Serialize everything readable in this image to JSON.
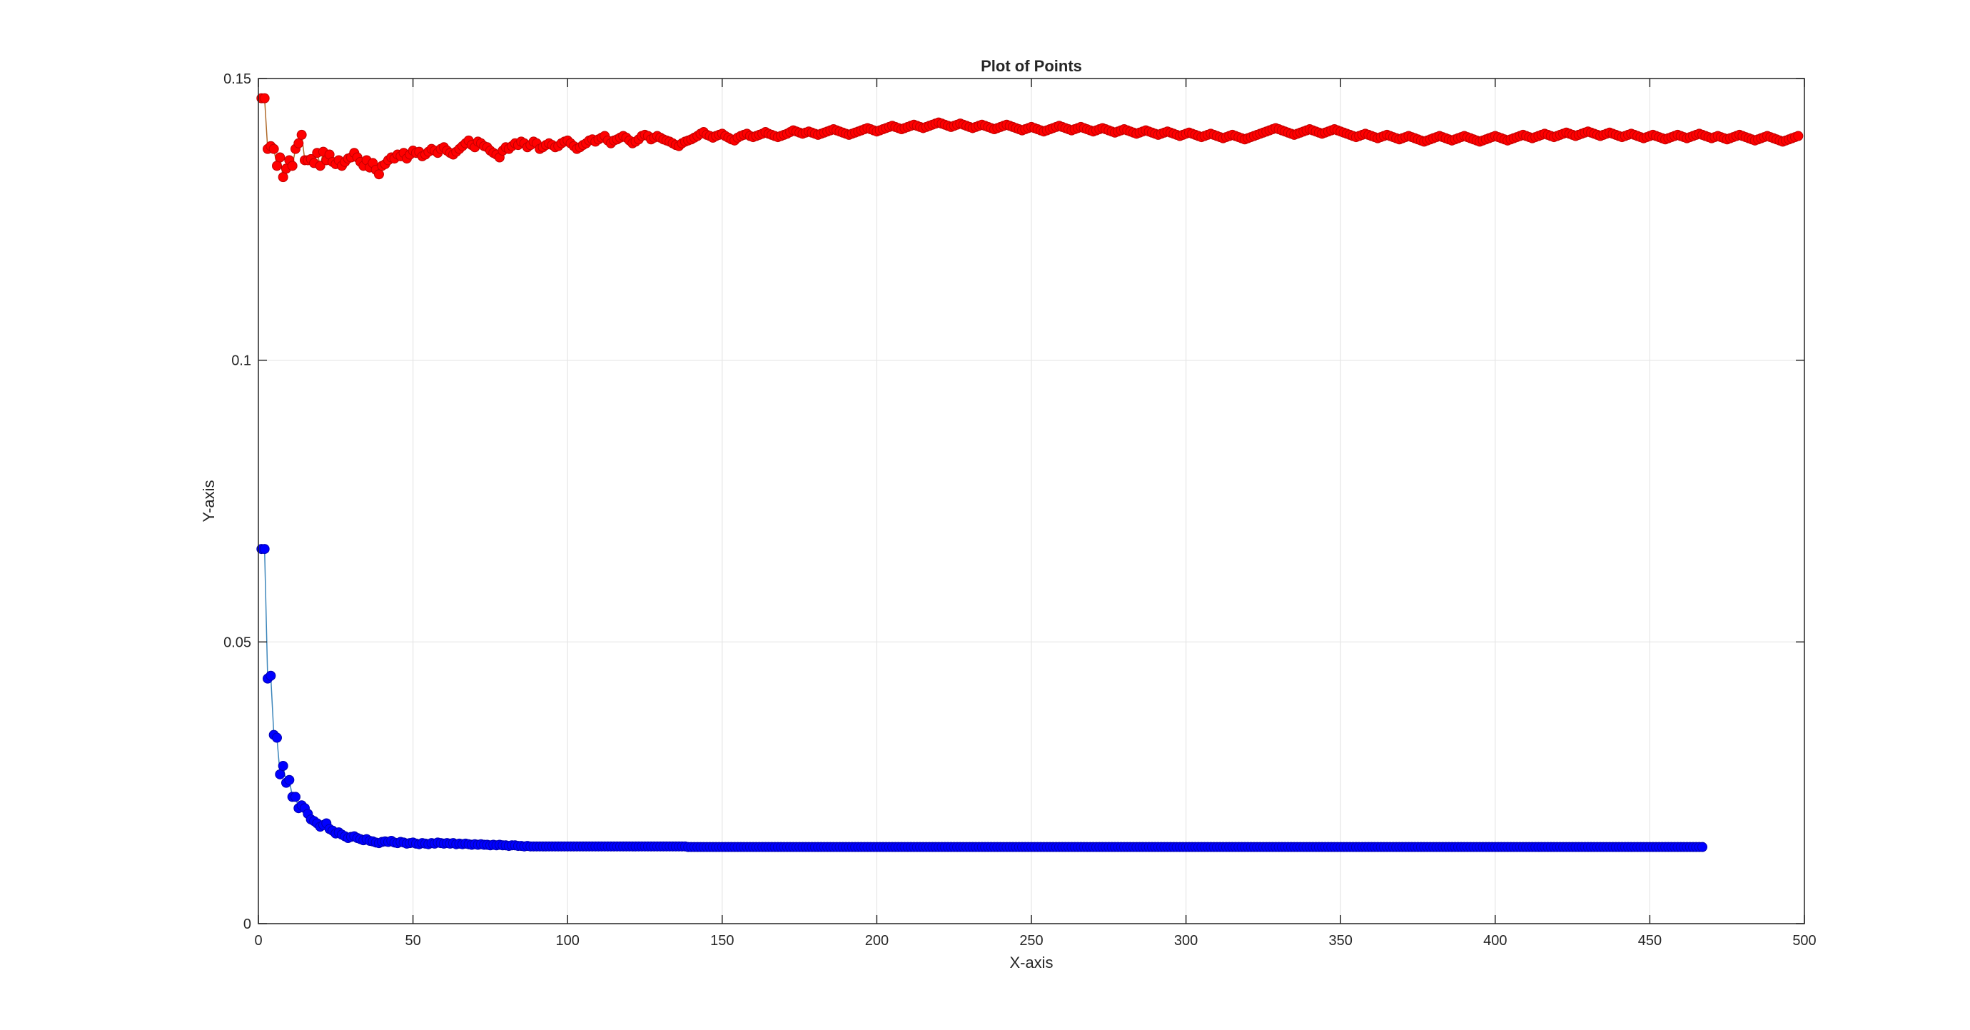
{
  "chart_data": {
    "type": "scatter",
    "title": "Plot of Points",
    "xlabel": "X-axis",
    "ylabel": "Y-axis",
    "xlim": [
      0,
      500
    ],
    "ylim": [
      0,
      0.15
    ],
    "xticks": [
      0,
      50,
      100,
      150,
      200,
      250,
      300,
      350,
      400,
      450,
      500
    ],
    "xtick_labels": [
      "0",
      "50",
      "100",
      "150",
      "200",
      "250",
      "300",
      "350",
      "400",
      "450",
      "500"
    ],
    "yticks": [
      0,
      0.05,
      0.1,
      0.15
    ],
    "ytick_labels": [
      "0",
      "0.05",
      "0.1",
      "0.15"
    ],
    "grid": true,
    "markers_connected_by_line": true,
    "series": [
      {
        "color": "#ff0000",
        "edge_color": "#c00000",
        "line_color": "#b06a2a",
        "x_start": 1,
        "x_step": 1,
        "values": [
          0.1465,
          0.1465,
          0.1375,
          0.138,
          0.1375,
          0.1345,
          0.136,
          0.1325,
          0.134,
          0.1355,
          0.1345,
          0.1375,
          0.1385,
          0.14,
          0.1355,
          0.1355,
          0.1357,
          0.135,
          0.1368,
          0.1345,
          0.137,
          0.1355,
          0.1365,
          0.1352,
          0.1348,
          0.1355,
          0.1345,
          0.1352,
          0.1358,
          0.136,
          0.1368,
          0.136,
          0.1352,
          0.1345,
          0.1355,
          0.1342,
          0.135,
          0.1338,
          0.133,
          0.1345,
          0.1348,
          0.1355,
          0.136,
          0.1358,
          0.1365,
          0.1362,
          0.1368,
          0.1358,
          0.1365,
          0.1372,
          0.1368,
          0.137,
          0.1362,
          0.1365,
          0.137,
          0.1375,
          0.1372,
          0.1368,
          0.1375,
          0.1378,
          0.1372,
          0.1368,
          0.1365,
          0.137,
          0.1375,
          0.138,
          0.1385,
          0.139,
          0.1382,
          0.1378,
          0.1388,
          0.1385,
          0.138,
          0.1378,
          0.1372,
          0.1368,
          0.1365,
          0.136,
          0.1372,
          0.1378,
          0.1375,
          0.138,
          0.1385,
          0.1382,
          0.1388,
          0.1385,
          0.1378,
          0.1382,
          0.1388,
          0.1385,
          0.1375,
          0.1378,
          0.1382,
          0.1385,
          0.1382,
          0.1378,
          0.138,
          0.1385,
          0.1388,
          0.139,
          0.1385,
          0.138,
          0.1375,
          0.1378,
          0.1382,
          0.1385,
          0.139,
          0.1392,
          0.1388,
          0.1392,
          0.1395,
          0.1398,
          0.139,
          0.1385,
          0.139,
          0.1392,
          0.1395,
          0.1398,
          0.1395,
          0.139,
          0.1385,
          0.1388,
          0.1392,
          0.1398,
          0.14,
          0.1398,
          0.1392,
          0.1395,
          0.1398,
          0.1395,
          0.1392,
          0.139,
          0.1388,
          0.1385,
          0.1382,
          0.138,
          0.1385,
          0.1388,
          0.139,
          0.1392,
          0.1395,
          0.1398,
          0.1402,
          0.1405,
          0.14,
          0.1398,
          0.1395,
          0.1398,
          0.14,
          0.1402,
          0.1398,
          0.1395,
          0.1392,
          0.139,
          0.1395,
          0.1398,
          0.14,
          0.1402,
          0.1398,
          0.1396,
          0.1398,
          0.14,
          0.1402,
          0.1405,
          0.1402,
          0.14,
          0.1398,
          0.1396,
          0.1398,
          0.14,
          0.1402,
          0.1405,
          0.1408,
          0.1406,
          0.1404,
          0.1402,
          0.1404,
          0.1406,
          0.1404,
          0.1402,
          0.14,
          0.1402,
          0.1404,
          0.1406,
          0.1408,
          0.141,
          0.1408,
          0.1406,
          0.1404,
          0.1402,
          0.14,
          0.1402,
          0.1404,
          0.1406,
          0.1408,
          0.141,
          0.1412,
          0.141,
          0.1408,
          0.1406,
          0.1408,
          0.141,
          0.1412,
          0.1414,
          0.1416,
          0.1414,
          0.1412,
          0.141,
          0.1412,
          0.1414,
          0.1416,
          0.1418,
          0.1416,
          0.1414,
          0.1412,
          0.1414,
          0.1416,
          0.1418,
          0.142,
          0.1422,
          0.142,
          0.1418,
          0.1416,
          0.1414,
          0.1416,
          0.1418,
          0.142,
          0.1418,
          0.1416,
          0.1414,
          0.1412,
          0.1414,
          0.1416,
          0.1418,
          0.1416,
          0.1414,
          0.1412,
          0.141,
          0.1412,
          0.1414,
          0.1416,
          0.1418,
          0.1416,
          0.1414,
          0.1412,
          0.141,
          0.1408,
          0.141,
          0.1412,
          0.1414,
          0.1412,
          0.141,
          0.1408,
          0.1406,
          0.1408,
          0.141,
          0.1412,
          0.1414,
          0.1416,
          0.1414,
          0.1412,
          0.141,
          0.1408,
          0.141,
          0.1412,
          0.1414,
          0.1412,
          0.141,
          0.1408,
          0.1406,
          0.1408,
          0.141,
          0.1412,
          0.141,
          0.1408,
          0.1406,
          0.1404,
          0.1406,
          0.1408,
          0.141,
          0.1408,
          0.1406,
          0.1404,
          0.1402,
          0.1404,
          0.1406,
          0.1408,
          0.1406,
          0.1404,
          0.1402,
          0.14,
          0.1402,
          0.1404,
          0.1406,
          0.1404,
          0.1402,
          0.14,
          0.1398,
          0.14,
          0.1402,
          0.1404,
          0.1402,
          0.14,
          0.1398,
          0.1396,
          0.1398,
          0.14,
          0.1402,
          0.14,
          0.1398,
          0.1396,
          0.1394,
          0.1396,
          0.1398,
          0.14,
          0.1398,
          0.1396,
          0.1394,
          0.1392,
          0.1394,
          0.1396,
          0.1398,
          0.14,
          0.1402,
          0.1404,
          0.1406,
          0.1408,
          0.141,
          0.1412,
          0.141,
          0.1408,
          0.1406,
          0.1404,
          0.1402,
          0.14,
          0.1402,
          0.1404,
          0.1406,
          0.1408,
          0.141,
          0.1408,
          0.1406,
          0.1404,
          0.1402,
          0.1404,
          0.1406,
          0.1408,
          0.141,
          0.1408,
          0.1406,
          0.1404,
          0.1402,
          0.14,
          0.1398,
          0.1396,
          0.1398,
          0.14,
          0.1402,
          0.14,
          0.1398,
          0.1396,
          0.1394,
          0.1396,
          0.1398,
          0.14,
          0.1398,
          0.1396,
          0.1394,
          0.1392,
          0.1394,
          0.1396,
          0.1398,
          0.1396,
          0.1394,
          0.1392,
          0.139,
          0.1388,
          0.139,
          0.1392,
          0.1394,
          0.1396,
          0.1398,
          0.1396,
          0.1394,
          0.1392,
          0.139,
          0.1392,
          0.1394,
          0.1396,
          0.1398,
          0.1396,
          0.1394,
          0.1392,
          0.139,
          0.1388,
          0.139,
          0.1392,
          0.1394,
          0.1396,
          0.1398,
          0.1396,
          0.1394,
          0.1392,
          0.139,
          0.1392,
          0.1394,
          0.1396,
          0.1398,
          0.14,
          0.1398,
          0.1396,
          0.1394,
          0.1396,
          0.1398,
          0.14,
          0.1402,
          0.14,
          0.1398,
          0.1396,
          0.1398,
          0.14,
          0.1402,
          0.1404,
          0.1402,
          0.14,
          0.1398,
          0.14,
          0.1402,
          0.1404,
          0.1406,
          0.1404,
          0.1402,
          0.14,
          0.1398,
          0.14,
          0.1402,
          0.1404,
          0.1402,
          0.14,
          0.1398,
          0.1396,
          0.1398,
          0.14,
          0.1402,
          0.14,
          0.1398,
          0.1396,
          0.1394,
          0.1396,
          0.1398,
          0.14,
          0.1398,
          0.1396,
          0.1394,
          0.1392,
          0.1394,
          0.1396,
          0.1398,
          0.14,
          0.1398,
          0.1396,
          0.1394,
          0.1396,
          0.1398,
          0.14,
          0.1402,
          0.14,
          0.1398,
          0.1396,
          0.1394,
          0.1396,
          0.1398,
          0.1396,
          0.1394,
          0.1392,
          0.1394,
          0.1396,
          0.1398,
          0.14,
          0.1398,
          0.1396,
          0.1394,
          0.1392,
          0.139,
          0.1392,
          0.1394,
          0.1396,
          0.1398,
          0.1396,
          0.1394,
          0.1392,
          0.139,
          0.1388,
          0.139,
          0.1392,
          0.1394,
          0.1396,
          0.1398
        ]
      },
      {
        "color": "#0000ff",
        "edge_color": "#0000b0",
        "line_color": "#3d86bb",
        "x_start": 1,
        "x_step": 1,
        "values": [
          0.0665,
          0.0665,
          0.0435,
          0.044,
          0.0335,
          0.033,
          0.0265,
          0.028,
          0.025,
          0.0255,
          0.0225,
          0.0225,
          0.0205,
          0.021,
          0.0205,
          0.0195,
          0.0185,
          0.0182,
          0.0178,
          0.0172,
          0.0175,
          0.0178,
          0.0168,
          0.0165,
          0.016,
          0.0162,
          0.0158,
          0.0155,
          0.0152,
          0.0154,
          0.0155,
          0.0152,
          0.015,
          0.0148,
          0.015,
          0.0147,
          0.0146,
          0.0144,
          0.0143,
          0.0145,
          0.0146,
          0.0145,
          0.0147,
          0.0144,
          0.0143,
          0.0145,
          0.0144,
          0.0142,
          0.0143,
          0.0144,
          0.0142,
          0.0141,
          0.0143,
          0.0142,
          0.0141,
          0.0143,
          0.0142,
          0.0144,
          0.0143,
          0.0142,
          0.0143,
          0.0142,
          0.0143,
          0.0141,
          0.0142,
          0.0141,
          0.0142,
          0.0141,
          0.014,
          0.0141,
          0.014,
          0.0141,
          0.014,
          0.014,
          0.0139,
          0.014,
          0.0139,
          0.014,
          0.0139,
          0.0139,
          0.0138,
          0.0139,
          0.0139,
          0.0138,
          0.0138,
          0.0137,
          0.0138,
          0.0137,
          0.0137,
          0.0137,
          0.0137,
          0.0137,
          0.0137,
          0.0137,
          0.0137,
          0.0137,
          0.0137,
          0.0137,
          0.0137,
          0.0137,
          0.0137,
          0.0137,
          0.0137,
          0.0137,
          0.0137,
          0.0137,
          0.0137,
          0.0137,
          0.0137,
          0.0137,
          0.0137,
          0.0137,
          0.0137,
          0.0137,
          0.0137,
          0.0137,
          0.0137,
          0.0137,
          0.0137,
          0.0137,
          0.0137,
          0.0137,
          0.0137,
          0.0137,
          0.0137,
          0.0137,
          0.0137,
          0.0137,
          0.0137,
          0.0137,
          0.0137,
          0.0137,
          0.0137,
          0.0137,
          0.0137,
          0.0137,
          0.0137,
          0.0137,
          0.0136,
          0.0136,
          0.0136,
          0.0136,
          0.0136,
          0.0136,
          0.0136,
          0.0136,
          0.0136,
          0.0136,
          0.0136,
          0.0136,
          0.0136,
          0.0136,
          0.0136,
          0.0136,
          0.0136,
          0.0136,
          0.0136,
          0.0136,
          0.0136,
          0.0136,
          0.0136,
          0.0136,
          0.0136,
          0.0136,
          0.0136,
          0.0136,
          0.0136,
          0.0136,
          0.0136,
          0.0136,
          0.0136,
          0.0136,
          0.0136,
          0.0136,
          0.0136,
          0.0136,
          0.0136,
          0.0136,
          0.0136,
          0.0136,
          0.0136,
          0.0136,
          0.0136,
          0.0136,
          0.0136,
          0.0136,
          0.0136,
          0.0136,
          0.0136,
          0.0136,
          0.0136,
          0.0136,
          0.0136,
          0.0136,
          0.0136,
          0.0136,
          0.0136,
          0.0136,
          0.0136,
          0.0136,
          0.0136,
          0.0136,
          0.0136,
          0.0136,
          0.0136,
          0.0136,
          0.0136,
          0.0136,
          0.0136,
          0.0136,
          0.0136,
          0.0136,
          0.0136,
          0.0136,
          0.0136,
          0.0136,
          0.0136,
          0.0136,
          0.0136,
          0.0136,
          0.0136,
          0.0136,
          0.0136,
          0.0136,
          0.0136,
          0.0136,
          0.0136,
          0.0136,
          0.0136,
          0.0136,
          0.0136,
          0.0136,
          0.0136,
          0.0136,
          0.0136,
          0.0136,
          0.0136,
          0.0136,
          0.0136,
          0.0136,
          0.0136,
          0.0136,
          0.0136,
          0.0136,
          0.0136,
          0.0136,
          0.0136,
          0.0136,
          0.0136,
          0.0136,
          0.0136,
          0.0136,
          0.0136,
          0.0136,
          0.0136,
          0.0136,
          0.0136,
          0.0136,
          0.0136,
          0.0136,
          0.0136,
          0.0136,
          0.0136,
          0.0136,
          0.0136,
          0.0136,
          0.0136,
          0.0136,
          0.0136,
          0.0136,
          0.0136,
          0.0136,
          0.0136,
          0.0136,
          0.0136,
          0.0136,
          0.0136,
          0.0136,
          0.0136,
          0.0136,
          0.0136,
          0.0136,
          0.0136,
          0.0136,
          0.0136,
          0.0136,
          0.0136,
          0.0136,
          0.0136,
          0.0136,
          0.0136,
          0.0136,
          0.0136,
          0.0136,
          0.0136,
          0.0136,
          0.0136,
          0.0136,
          0.0136,
          0.0136,
          0.0136,
          0.0136,
          0.0136,
          0.0136,
          0.0136,
          0.0136,
          0.0136,
          0.0136,
          0.0136,
          0.0136,
          0.0136,
          0.0136,
          0.0136,
          0.0136,
          0.0136,
          0.0136,
          0.0136,
          0.0136,
          0.0136,
          0.0136,
          0.0136,
          0.0136,
          0.0136,
          0.0136,
          0.0136,
          0.0136,
          0.0136,
          0.0136,
          0.0136,
          0.0136,
          0.0136,
          0.0136,
          0.0136,
          0.0136,
          0.0136,
          0.0136,
          0.0136,
          0.0136,
          0.0136,
          0.0136,
          0.0136,
          0.0136,
          0.0136,
          0.0136,
          0.0136,
          0.0136,
          0.0136,
          0.0136,
          0.0136,
          0.0136,
          0.0136,
          0.0136,
          0.0136,
          0.0136,
          0.0136,
          0.0136,
          0.0136,
          0.0136,
          0.0136,
          0.0136,
          0.0136,
          0.0136,
          0.0136,
          0.0136,
          0.0136,
          0.0136,
          0.0136,
          0.0136,
          0.0136,
          0.0136,
          0.0136,
          0.0136,
          0.0136,
          0.0136,
          0.0136,
          0.0136,
          0.0136,
          0.0136,
          0.0136,
          0.0136,
          0.0136,
          0.0136,
          0.0136,
          0.0136,
          0.0136,
          0.0136,
          0.0136,
          0.0136,
          0.0136,
          0.0136,
          0.0136,
          0.0136,
          0.0136,
          0.0136,
          0.0136,
          0.0136,
          0.0136,
          0.0136,
          0.0136,
          0.0136,
          0.0136,
          0.0136,
          0.0136,
          0.0136,
          0.0136,
          0.0136,
          0.0136,
          0.0136,
          0.0136,
          0.0136,
          0.0136,
          0.0136,
          0.0136,
          0.0136,
          0.0136,
          0.0136,
          0.0136,
          0.0136,
          0.0136,
          0.0136,
          0.0136,
          0.0136,
          0.0136,
          0.0136,
          0.0136,
          0.0136,
          0.0136,
          0.0136,
          0.0136,
          0.0136,
          0.0136,
          0.0136,
          0.0136,
          0.0136,
          0.0136,
          0.0136,
          0.0136,
          0.0136,
          0.0136,
          0.0136,
          0.0136,
          0.0136,
          0.0136,
          0.0136,
          0.0136,
          0.0136,
          0.0136,
          0.0136,
          0.0136,
          0.0136,
          0.0136,
          0.0136,
          0.0136,
          0.0136,
          0.0136,
          0.0136,
          0.0136,
          0.0136,
          0.0136,
          0.0136,
          0.0136,
          0.0136,
          0.0136,
          0.0136,
          0.0136,
          0.0136,
          0.0136
        ]
      }
    ]
  }
}
